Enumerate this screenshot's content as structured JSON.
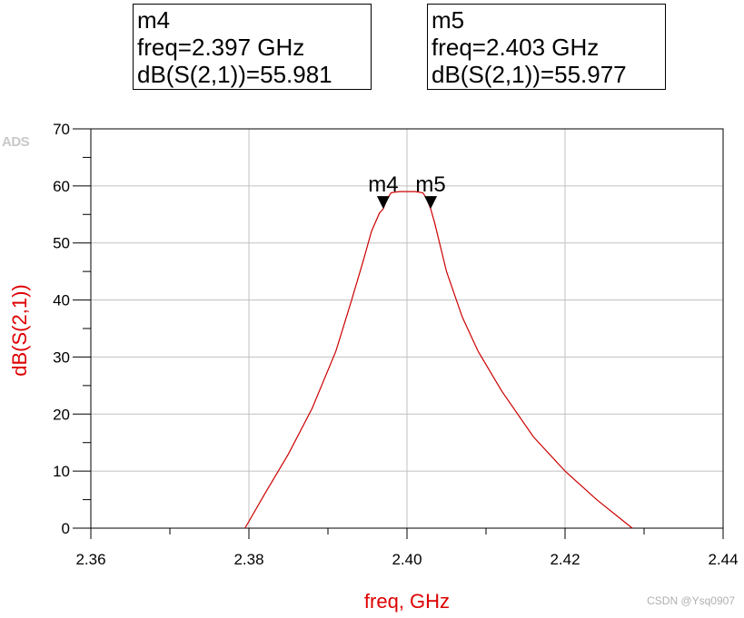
{
  "watermark": "ADS",
  "credit": "CSDN @Ysq0907",
  "markers": [
    {
      "name": "m4",
      "freq_line": "freq=2.397 GHz",
      "value_line": "dB(S(2,1))=55.981",
      "freq": 2.397,
      "value": 55.981
    },
    {
      "name": "m5",
      "freq_line": "freq=2.403 GHz",
      "value_line": "dB(S(2,1))=55.977",
      "freq": 2.403,
      "value": 55.977
    }
  ],
  "chart_data": {
    "type": "line",
    "title": "",
    "xlabel": "freq, GHz",
    "ylabel": "dB(S(2,1))",
    "xlim": [
      2.36,
      2.44
    ],
    "ylim": [
      0,
      70
    ],
    "x_ticks": [
      "2.36",
      "2.38",
      "2.40",
      "2.42",
      "2.44"
    ],
    "y_ticks": [
      "0",
      "10",
      "20",
      "30",
      "40",
      "50",
      "60",
      "70"
    ],
    "grid": true,
    "colors": {
      "series": "#cc0000",
      "axis_label": "#dd0000",
      "grid": "#c0c0c0"
    },
    "series": [
      {
        "x": [
          2.3795,
          2.382,
          2.385,
          2.388,
          2.391,
          2.393,
          2.3945,
          2.3955,
          2.3965,
          2.397,
          2.3975,
          2.398,
          2.399,
          2.4,
          2.401,
          2.402,
          2.4025,
          2.403,
          2.4035,
          2.405,
          2.407,
          2.409,
          2.412,
          2.416,
          2.42,
          2.424,
          2.4285
        ],
        "y": [
          0,
          6,
          13,
          21,
          31,
          40,
          47,
          52,
          55.2,
          55.981,
          57.8,
          58.8,
          59.0,
          59.0,
          59.0,
          58.8,
          57.8,
          55.977,
          53.5,
          45,
          37,
          31,
          24,
          16,
          10,
          5,
          0
        ]
      }
    ]
  }
}
